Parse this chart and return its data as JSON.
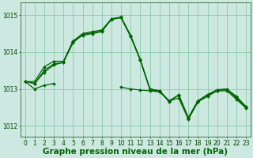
{
  "background_color": "#cce8e0",
  "grid_color": "#88ccaa",
  "line_color": "#006600",
  "xlabel": "Graphe pression niveau de la mer (hPa)",
  "xlim": [
    -0.5,
    23.5
  ],
  "ylim": [
    1011.7,
    1015.35
  ],
  "yticks": [
    1012,
    1013,
    1014,
    1015
  ],
  "xticks": [
    0,
    1,
    2,
    3,
    4,
    5,
    6,
    7,
    8,
    9,
    10,
    11,
    12,
    13,
    14,
    15,
    16,
    17,
    18,
    19,
    20,
    21,
    22,
    23
  ],
  "series": [
    [
      1013.2,
      1013.2,
      1013.6,
      1013.75,
      1013.75,
      1014.3,
      1014.5,
      1014.55,
      1014.6,
      1014.9,
      1014.95,
      1014.45,
      1013.8,
      1013.0,
      1012.95,
      1012.65,
      1012.85,
      1012.2,
      1012.65,
      1012.85,
      1012.95,
      1013.0,
      1012.75,
      1012.5
    ],
    [
      1013.2,
      1013.15,
      1013.45,
      1013.65,
      1013.72,
      1014.25,
      1014.48,
      1014.52,
      1014.57,
      1014.88,
      1014.93,
      1014.42,
      1013.78,
      1012.98,
      1012.93,
      1012.68,
      1012.83,
      1012.22,
      1012.68,
      1012.83,
      1012.97,
      1012.98,
      1012.78,
      1012.52
    ],
    [
      1013.2,
      1013.0,
      1013.1,
      1013.15,
      null,
      null,
      null,
      null,
      null,
      null,
      1013.05,
      1013.0,
      1012.97,
      1012.95,
      1012.92,
      1012.68,
      1012.75,
      1012.18,
      1012.65,
      1012.8,
      1012.95,
      1012.95,
      1012.72,
      1012.48
    ],
    [
      1013.2,
      1013.15,
      1013.5,
      1013.68,
      1013.72,
      1014.28,
      1014.45,
      1014.5,
      1014.55,
      1014.9,
      1014.93,
      1014.42,
      1013.78,
      1013.0,
      1012.95,
      1012.68,
      1012.83,
      1012.22,
      1012.68,
      1012.85,
      1012.98,
      1013.0,
      1012.8,
      1012.52
    ]
  ],
  "line_width": 0.9,
  "marker": "D",
  "marker_size": 2.0,
  "tick_fontsize": 5.5,
  "xlabel_fontsize": 7.5
}
